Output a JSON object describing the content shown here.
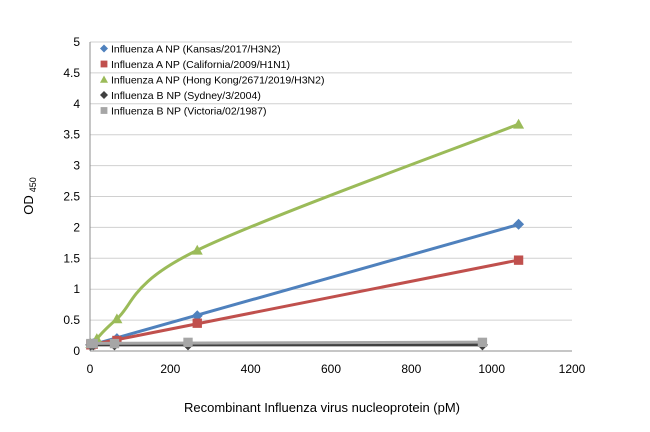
{
  "chart_data": {
    "type": "line",
    "title": "",
    "xlabel": "Recombinant  Influenza virus nucleoprotein  (pM)",
    "ylabel": "OD",
    "ylabel_sub": "450",
    "xlim": [
      0,
      1200
    ],
    "ylim": [
      0,
      5
    ],
    "xticks": [
      0,
      200,
      400,
      600,
      800,
      1000,
      1200
    ],
    "yticks": [
      0,
      0.5,
      1,
      1.5,
      2,
      2.5,
      3,
      3.5,
      4,
      4.5,
      5
    ],
    "xtick_labels": [
      "0",
      "200",
      "400",
      "600",
      "800",
      "1000",
      "1200"
    ],
    "ytick_labels": [
      "0",
      "0.5",
      "1",
      "1.5",
      "2",
      "2.5",
      "3",
      "3.5",
      "4",
      "4.5",
      "5"
    ],
    "grid": "horizontal",
    "legend_position": "top-left",
    "series": [
      {
        "name": "Influenza A NP (Kansas/2017/H3N2)",
        "color": "#4f81bd",
        "marker": "diamond",
        "fit": "linear",
        "x": [
          2,
          8,
          67,
          267,
          1067
        ],
        "y": [
          0.1,
          0.12,
          0.2,
          0.57,
          2.05
        ]
      },
      {
        "name": "Influenza A NP (California/2009/H1N1)",
        "color": "#c0504d",
        "marker": "square",
        "fit": "linear",
        "x": [
          2,
          8,
          67,
          267,
          1067
        ],
        "y": [
          0.1,
          0.11,
          0.17,
          0.45,
          1.47
        ]
      },
      {
        "name": "Influenza A NP (Hong Kong/2671/2019/H3N2)",
        "color": "#9bbb59",
        "marker": "triangle",
        "fit": "curve",
        "x": [
          2,
          17,
          67,
          267,
          1067
        ],
        "y": [
          0.12,
          0.2,
          0.52,
          1.63,
          3.67
        ]
      },
      {
        "name": "Influenza B NP (Sydney/3/2004)",
        "color": "#404040",
        "marker": "diamond",
        "fit": "linear",
        "x": [
          2,
          8,
          61,
          244,
          977
        ],
        "y": [
          0.1,
          0.1,
          0.1,
          0.1,
          0.1
        ]
      },
      {
        "name": "Influenza B NP (Victoria/02/1987)",
        "color": "#a6a6a6",
        "marker": "square",
        "fit": "linear",
        "x": [
          2,
          8,
          61,
          244,
          977
        ],
        "y": [
          0.12,
          0.12,
          0.12,
          0.14,
          0.14
        ]
      }
    ]
  }
}
